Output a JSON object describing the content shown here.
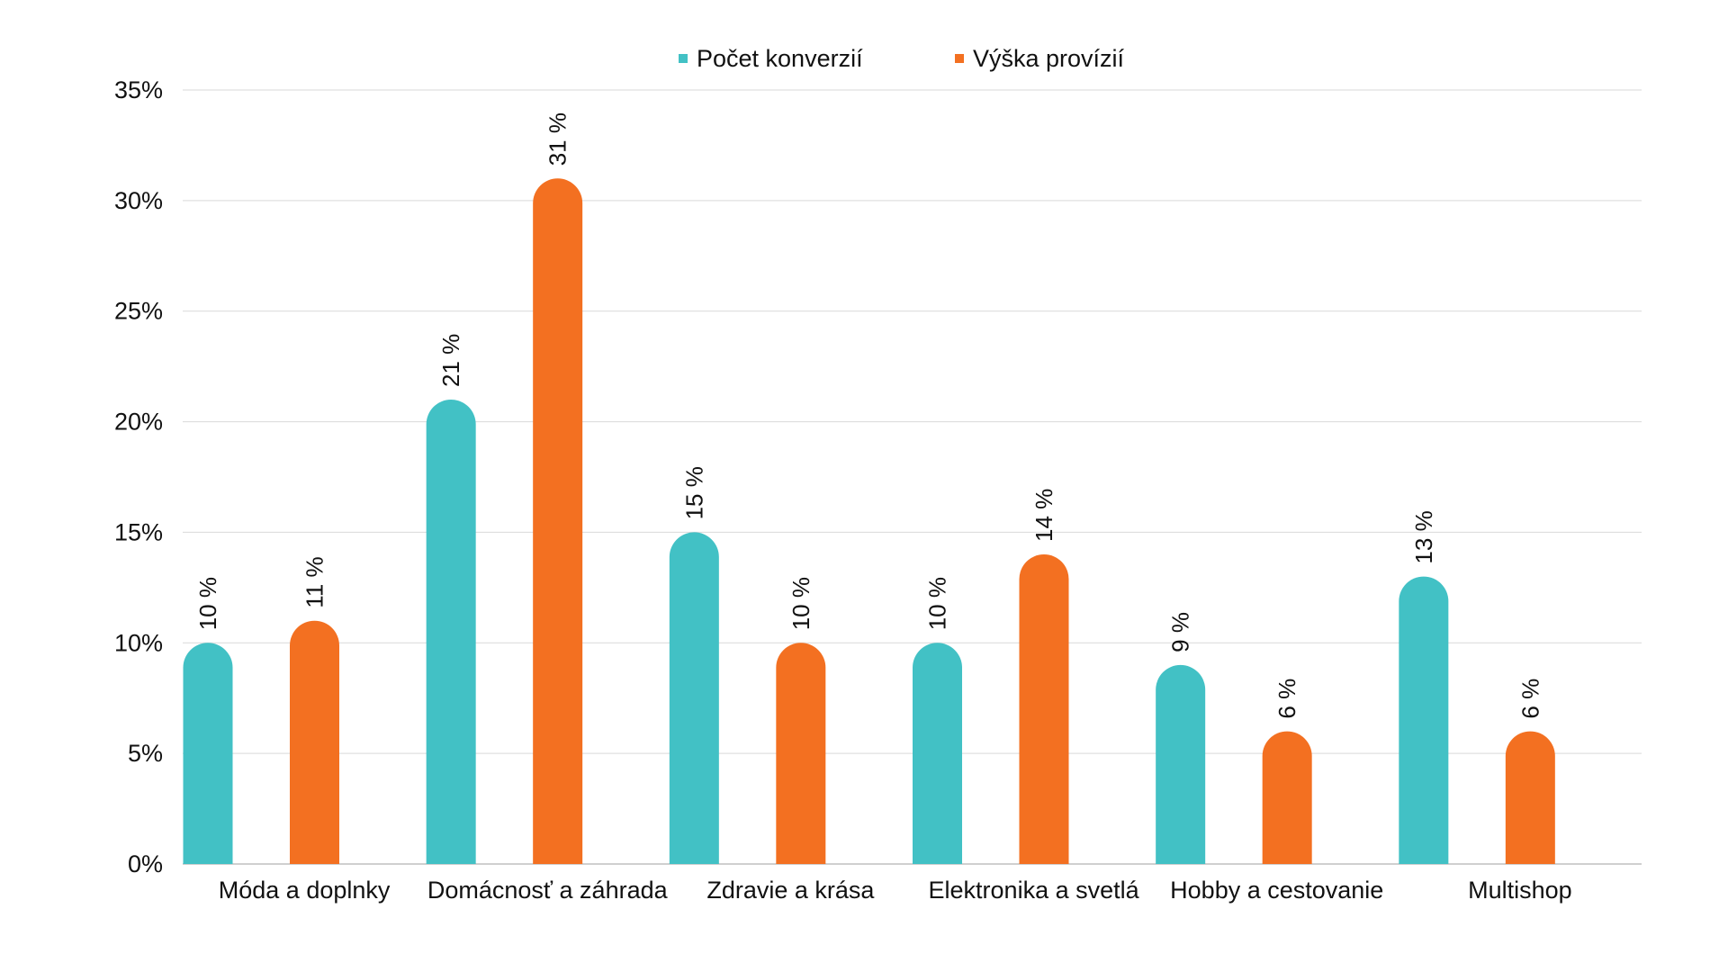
{
  "chart_data": {
    "type": "bar",
    "title": "",
    "xlabel": "",
    "ylabel": "",
    "ylim": [
      0,
      35
    ],
    "yticks": [
      0,
      5,
      10,
      15,
      20,
      25,
      30,
      35
    ],
    "ytick_labels": [
      "0%",
      "5%",
      "10%",
      "15%",
      "20%",
      "25%",
      "30%",
      "35%"
    ],
    "grid": true,
    "legend_position": "top-center",
    "categories": [
      "Móda a doplnky",
      "Domácnosť a záhrada",
      "Zdravie a krása",
      "Elektronika a svetlá",
      "Hobby a cestovanie",
      "Multishop"
    ],
    "series": [
      {
        "name": "Počet konverzií",
        "color": "#42C1C5",
        "values": [
          10,
          21,
          15,
          10,
          9,
          13
        ],
        "labels": [
          "10 %",
          "21 %",
          "15 %",
          "10 %",
          "9 %",
          "13 %"
        ]
      },
      {
        "name": "Výška provízií",
        "color": "#F37021",
        "values": [
          11,
          31,
          10,
          14,
          6,
          6
        ],
        "labels": [
          "11 %",
          "31 %",
          "10 %",
          "14 %",
          "6 %",
          "6 %"
        ]
      }
    ]
  }
}
